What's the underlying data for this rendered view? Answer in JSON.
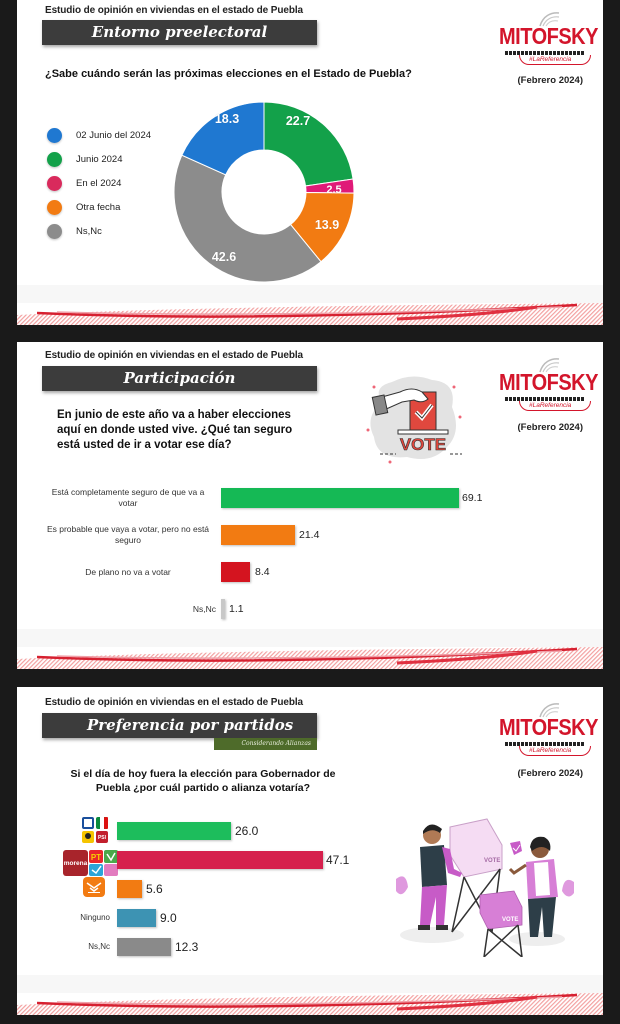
{
  "common": {
    "study_title": "Estudio de opinión en viviendas en el estado de Puebla",
    "brand": "MITOFSKY",
    "brand_tag": "#LaReferencia",
    "date": "(Febrero 2024)"
  },
  "panel1": {
    "section_title": "Entorno preelectoral",
    "question": "¿Sabe cuándo serán las próximas elecciones en el Estado de Puebla?"
  },
  "panel2": {
    "section_title": "Participación",
    "question_lines": [
      "En junio de este año va a haber elecciones",
      "aquí en donde usted vive. ¿Qué tan seguro",
      "está usted de ir a votar ese día?"
    ],
    "illustration": "vote-box-icon",
    "illustration_text": "VOTE"
  },
  "panel3": {
    "section_title": "Preferencia por partidos",
    "section_subtitle": "Considerando Alianzas",
    "question_lines": [
      "Si el día de hoy fuera la elección para Gobernador de",
      "Puebla ¿por cuál partido o alianza votaría?"
    ],
    "illustration": "people-voting-illustration",
    "logos": {
      "alliance1": [
        "PAN",
        "PRI",
        "PRD",
        "PSI"
      ],
      "alliance2": [
        "morena",
        "PT",
        "PVEM",
        "NAP",
        "PSI"
      ],
      "mc": "Movimiento Ciudadano"
    }
  },
  "chart_data": [
    {
      "type": "pie",
      "title": "¿Sabe cuándo serán las próximas elecciones en el Estado de Puebla?",
      "donut": true,
      "legend_position": "left",
      "categories": [
        "02 Junio del 2024",
        "Junio 2024",
        "En el 2024",
        "Otra fecha",
        "Ns,Nc"
      ],
      "values": [
        18.3,
        22.7,
        2.5,
        13.9,
        42.6
      ],
      "colors": [
        "#1f78d1",
        "#13a14a",
        "#e01a78",
        "#f27b12",
        "#8c8c8c"
      ],
      "labels": [
        "18.3",
        "22.7",
        "2.5",
        "13.9",
        "42.6"
      ]
    },
    {
      "type": "bar",
      "orientation": "horizontal",
      "title": "En junio de este año va a haber elecciones aquí en donde usted vive. ¿Qué tan seguro está usted de ir a votar ese día?",
      "categories": [
        "Está completamente seguro de que va a votar",
        "Es probable que vaya a votar, pero no está seguro",
        "De plano no va a votar",
        "Ns,Nc"
      ],
      "category_lines": [
        [
          "Está completamente seguro de que va a",
          "votar"
        ],
        [
          "Es probable que vaya a votar, pero no está",
          "seguro"
        ],
        [
          "De plano no va a votar"
        ],
        [
          "Ns,Nc"
        ]
      ],
      "values": [
        69.1,
        21.4,
        8.4,
        1.1
      ],
      "labels": [
        "69.1",
        "21.4",
        "8.4",
        "1.1"
      ],
      "colors": [
        "#15b955",
        "#f27b12",
        "#d4141f",
        "#c8c8c8"
      ],
      "grid": false
    },
    {
      "type": "bar",
      "orientation": "horizontal",
      "title": "Si el día de hoy fuera la elección para Gobernador de Puebla ¿por cuál partido o alianza votaría?",
      "categories": [
        "PAN-PRI-PRD-PSI",
        "Morena-PT-PVEM-NAP-PSI",
        "MC",
        "Ninguno",
        "Ns,Nc"
      ],
      "values": [
        26.0,
        47.1,
        5.6,
        9.0,
        12.3
      ],
      "labels": [
        "26.0",
        "47.1",
        "5.6",
        "9.0",
        "12.3"
      ],
      "colors": [
        "#1dbd5c",
        "#d6204d",
        "#f27b12",
        "#3d93b3",
        "#8a8a8a"
      ],
      "grid": false
    }
  ]
}
